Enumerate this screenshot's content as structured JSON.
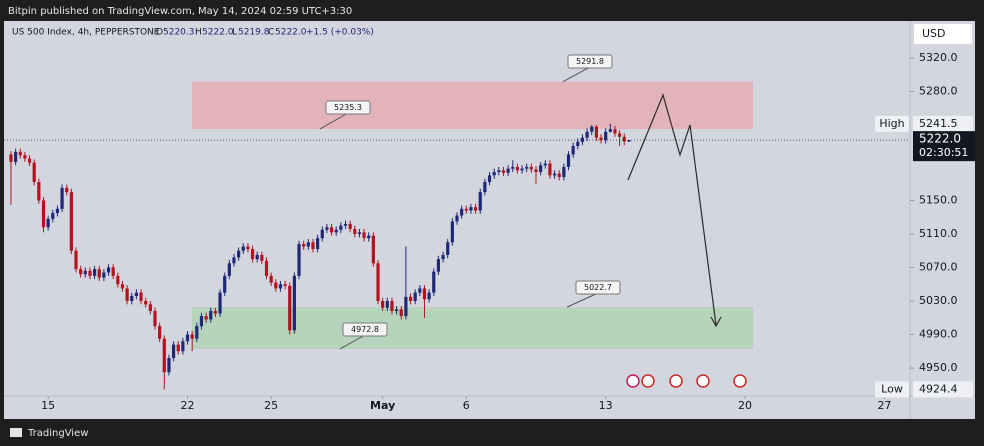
{
  "header": {
    "published": "Bitpin published on TradingView.com, May 14, 2024 02:59 UTC+3:30",
    "brand": "TradingView"
  },
  "chart_data": {
    "type": "candlestick",
    "symbol": "US 500 Index, 4h, PEPPERSTONE",
    "legend": {
      "o_label": "O",
      "o": "5220.3",
      "h_label": "H",
      "h": "5222.0",
      "l_label": "L",
      "l": "5219.8",
      "c_label": "C",
      "c": "5222.0",
      "change": "+1.5 (+0.03%)"
    },
    "currency": "USD",
    "open": [
      5205,
      5196,
      5208,
      5204,
      5200,
      5195,
      5172,
      5150,
      5118,
      5128,
      5135,
      5140,
      5165,
      5160,
      5090,
      5068,
      5062,
      5066,
      5060,
      5068,
      5058,
      5064,
      5070,
      5060,
      5050,
      5045,
      5030,
      5036,
      5040,
      5030,
      5026,
      5018,
      5000,
      4985,
      4945,
      4962,
      4978,
      4970,
      4982,
      4990,
      4985,
      5000,
      5012,
      5008,
      5018,
      5015,
      5040,
      5060,
      5075,
      5082,
      5090,
      5095,
      5092,
      5080,
      5085,
      5078,
      5060,
      5052,
      5045,
      5050,
      5048,
      4995,
      5060,
      5098,
      5095,
      5100,
      5092,
      5105,
      5115,
      5118,
      5112,
      5115,
      5120,
      5122,
      5116,
      5110,
      5112,
      5105,
      5108,
      5075,
      5030,
      5022,
      5030,
      5018,
      5020,
      5012,
      5035,
      5030,
      5040,
      5045,
      5032,
      5040,
      5065,
      5080,
      5085,
      5100,
      5125,
      5132,
      5140,
      5138,
      5142,
      5138,
      5160,
      5172,
      5180,
      5184,
      5186,
      5183,
      5188,
      5190,
      5186,
      5188,
      5190,
      5187,
      5184,
      5192,
      5194,
      5180,
      5182,
      5178,
      5190,
      5205,
      5215,
      5220,
      5225,
      5232,
      5238,
      5225,
      5222,
      5232,
      5235,
      5230,
      5226,
      5220.3
    ],
    "high": [
      5209,
      5212,
      5212,
      5208,
      5204,
      5199,
      5176,
      5154,
      5132,
      5139,
      5144,
      5169,
      5169,
      5164,
      5094,
      5072,
      5070,
      5070,
      5072,
      5072,
      5068,
      5074,
      5074,
      5064,
      5054,
      5049,
      5040,
      5044,
      5044,
      5034,
      5030,
      5022,
      5004,
      4989,
      4966,
      4982,
      4982,
      4986,
      4994,
      4994,
      5004,
      5016,
      5016,
      5022,
      5022,
      5044,
      5064,
      5079,
      5086,
      5094,
      5099,
      5099,
      5096,
      5089,
      5089,
      5082,
      5064,
      5056,
      5054,
      5054,
      5052,
      5064,
      5102,
      5102,
      5104,
      5104,
      5109,
      5119,
      5122,
      5122,
      5119,
      5124,
      5126,
      5126,
      5120,
      5116,
      5116,
      5112,
      5112,
      5079,
      5034,
      5034,
      5034,
      5024,
      5024,
      5095,
      5039,
      5044,
      5049,
      5049,
      5044,
      5069,
      5084,
      5089,
      5104,
      5129,
      5136,
      5144,
      5144,
      5146,
      5146,
      5164,
      5176,
      5184,
      5188,
      5190,
      5190,
      5192,
      5198,
      5194,
      5192,
      5194,
      5194,
      5191,
      5196,
      5198,
      5198,
      5186,
      5186,
      5194,
      5209,
      5219,
      5224,
      5229,
      5236,
      5240,
      5240,
      5229,
      5236,
      5241.5,
      5239,
      5234,
      5230,
      5222
    ],
    "low": [
      5145,
      5192,
      5200,
      5196,
      5191,
      5168,
      5146,
      5112,
      5114,
      5124,
      5131,
      5136,
      5156,
      5086,
      5064,
      5058,
      5058,
      5056,
      5056,
      5054,
      5054,
      5060,
      5056,
      5046,
      5041,
      5026,
      5026,
      5032,
      5026,
      5022,
      5014,
      4996,
      4981,
      4924.4,
      4941,
      4958,
      4966,
      4966,
      4978,
      4970,
      4981,
      4996,
      5004,
      5004,
      5011,
      5011,
      5036,
      5056,
      5071,
      5078,
      5086,
      5088,
      5076,
      5076,
      5074,
      5056,
      5048,
      5041,
      5041,
      5044,
      4990,
      4991,
      5056,
      5091,
      5091,
      5088,
      5088,
      5101,
      5111,
      5108,
      5108,
      5111,
      5116,
      5112,
      5106,
      5106,
      5101,
      5101,
      5071,
      5026,
      5018,
      5018,
      5014,
      5014,
      5008,
      5008,
      5026,
      5026,
      5036,
      5010,
      5028,
      5036,
      5061,
      5076,
      5081,
      5096,
      5121,
      5128,
      5134,
      5134,
      5134,
      5134,
      5156,
      5168,
      5176,
      5180,
      5179,
      5179,
      5184,
      5182,
      5182,
      5184,
      5183,
      5170,
      5180,
      5188,
      5176,
      5176,
      5174,
      5174,
      5186,
      5201,
      5211,
      5216,
      5221,
      5228,
      5221,
      5218,
      5218,
      5231,
      5226,
      5215,
      5216,
      5219.8
    ],
    "close": [
      5196,
      5208,
      5204,
      5200,
      5195,
      5172,
      5150,
      5118,
      5128,
      5135,
      5140,
      5165,
      5160,
      5090,
      5068,
      5062,
      5066,
      5060,
      5068,
      5058,
      5064,
      5070,
      5060,
      5050,
      5045,
      5030,
      5036,
      5040,
      5030,
      5026,
      5018,
      5000,
      4985,
      4945,
      4962,
      4978,
      4970,
      4982,
      4990,
      4985,
      5000,
      5012,
      5008,
      5018,
      5015,
      5040,
      5060,
      5075,
      5082,
      5090,
      5095,
      5092,
      5080,
      5085,
      5078,
      5060,
      5052,
      5045,
      5050,
      5048,
      4995,
      5060,
      5098,
      5095,
      5100,
      5092,
      5105,
      5115,
      5118,
      5112,
      5115,
      5120,
      5122,
      5116,
      5110,
      5112,
      5105,
      5108,
      5075,
      5030,
      5022,
      5030,
      5018,
      5020,
      5012,
      5035,
      5030,
      5040,
      5045,
      5032,
      5040,
      5065,
      5080,
      5085,
      5100,
      5125,
      5132,
      5140,
      5138,
      5142,
      5138,
      5160,
      5172,
      5180,
      5184,
      5186,
      5183,
      5188,
      5190,
      5186,
      5188,
      5190,
      5187,
      5184,
      5192,
      5194,
      5180,
      5182,
      5178,
      5190,
      5205,
      5215,
      5220,
      5225,
      5232,
      5238,
      5225,
      5222,
      5232,
      5235,
      5230,
      5226,
      5220.5,
      5222
    ],
    "up_color": "#1e2877",
    "down_color": "#b3121e",
    "xlim": [
      -1.5,
      193.5
    ],
    "xticks": [
      {
        "value": 8,
        "label": "15"
      },
      {
        "value": 38,
        "label": "22"
      },
      {
        "value": 56,
        "label": "25"
      },
      {
        "value": 80,
        "label": "May"
      },
      {
        "value": 98,
        "label": "6"
      },
      {
        "value": 128,
        "label": "13"
      },
      {
        "value": 158,
        "label": "20"
      },
      {
        "value": 188,
        "label": "27"
      }
    ],
    "ylim": [
      4917.8,
      5363
    ],
    "yticks": [
      {
        "value": 5320,
        "label": "5320.0"
      },
      {
        "value": 5280,
        "label": "5280.0"
      },
      {
        "value": 5150,
        "label": "5150.0"
      },
      {
        "value": 5110,
        "label": "5110.0"
      },
      {
        "value": 5070,
        "label": "5070.0"
      },
      {
        "value": 5030,
        "label": "5030.0"
      },
      {
        "value": 4990,
        "label": "4990.0"
      },
      {
        "value": 4950,
        "label": "4950.0"
      }
    ],
    "high_marker": {
      "label": "High",
      "value": 5241.5
    },
    "low_marker": {
      "label": "Low",
      "value": 4924.4
    },
    "last_price": {
      "value": 5222,
      "label": "5222.0",
      "countdown": "02:30:51"
    },
    "zones": [
      {
        "low": 5235.3,
        "high": 5291.8,
        "color": "#e3b3ba"
      },
      {
        "low": 4972.8,
        "high": 5022.7,
        "color": "#b6d4bc"
      }
    ]
  }
}
